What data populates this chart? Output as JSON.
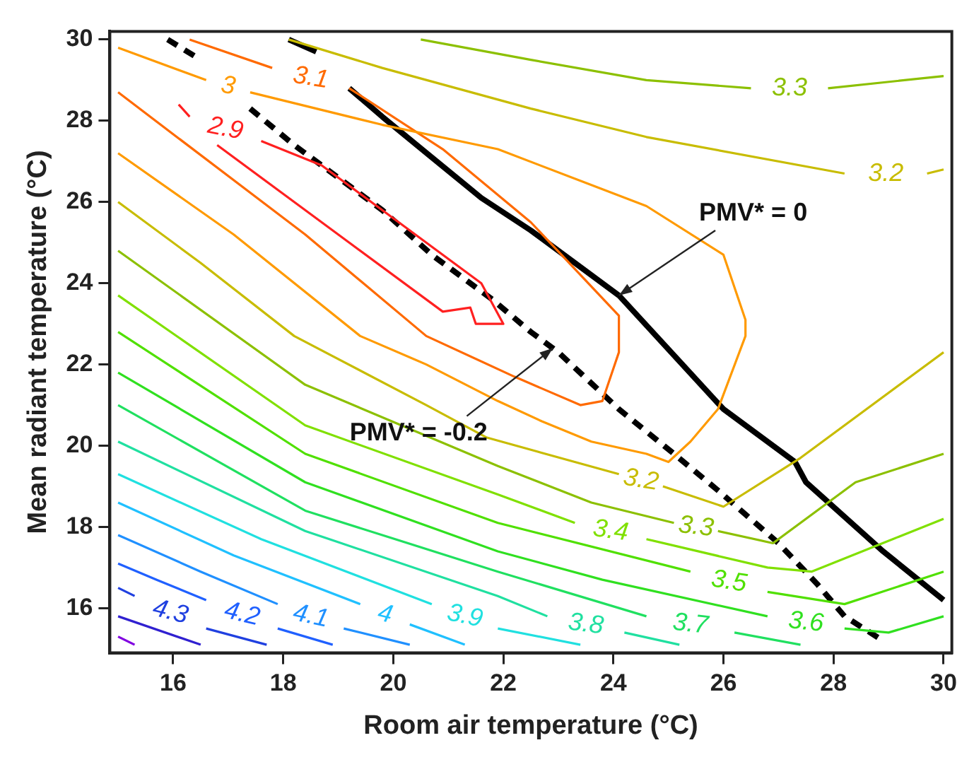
{
  "chart_data": {
    "type": "line",
    "xlabel": "Room air temperature (°C)",
    "ylabel": "Mean radiant temperature (°C)",
    "xlim": [
      14.85,
      30.15
    ],
    "ylim": [
      14.9,
      30.2
    ],
    "xticks": [
      16,
      18,
      20,
      22,
      24,
      26,
      28,
      30
    ],
    "yticks": [
      16,
      18,
      20,
      22,
      24,
      26,
      28,
      30
    ],
    "grid": false,
    "legend": false,
    "marker": "none",
    "annotations": [
      {
        "text": "PMV* = 0",
        "x": 24.1,
        "y": 23.7
      },
      {
        "text": "PMV* = -0.2",
        "x": 22.9,
        "y": 22.4
      }
    ],
    "series": [
      {
        "name": "2.9",
        "color": "#ff2020",
        "x": [
          16.8,
          17.9,
          19.2,
          20.9,
          21.4,
          21.5,
          22.0,
          21.6,
          20.9,
          19.8,
          18.7,
          17.6,
          17.0,
          16.3,
          16.1
        ],
        "values": [
          27.4,
          26.3,
          25.0,
          23.3,
          23.4,
          23.0,
          23.0,
          24.0,
          24.7,
          25.8,
          26.9,
          27.5,
          null,
          28.1,
          28.4
        ]
      },
      {
        "name": "3",
        "color": "#ff9a00",
        "x": [
          15.0,
          16.6,
          17.0,
          17.4,
          19.8,
          21.9,
          24.6,
          26.0,
          26.4,
          26.4,
          25.9,
          25.4,
          25.0,
          24.6,
          23.6,
          22.7,
          21.9,
          20.6,
          19.4,
          17.1,
          15.0
        ],
        "values": [
          29.8,
          29.0,
          null,
          28.7,
          27.9,
          27.3,
          25.9,
          24.7,
          23.1,
          22.7,
          20.9,
          20.1,
          19.6,
          19.8,
          20.1,
          20.6,
          21.1,
          22.0,
          22.7,
          25.2,
          27.2
        ]
      },
      {
        "name": "3.1",
        "color": "#ff6a00",
        "x": [
          16.3,
          17.8,
          18.5,
          19.2,
          20.9,
          22.5,
          24.1,
          24.1,
          23.8,
          23.4,
          22.2,
          20.6,
          18.4,
          15.0
        ],
        "values": [
          30.0,
          29.3,
          null,
          28.8,
          27.3,
          25.5,
          23.2,
          22.3,
          21.1,
          21.0,
          21.7,
          22.7,
          25.2,
          28.7
        ]
      },
      {
        "name": "3.2",
        "color": "#c8bc00",
        "x": [
          18.1,
          19.8,
          22.5,
          24.6,
          28.2,
          28.95,
          29.7,
          30.0
        ],
        "values": [
          30.0,
          29.3,
          28.3,
          27.6,
          26.7,
          null,
          26.7,
          26.8
        ]
      },
      {
        "name": "3.2",
        "color": "#c8bc00",
        "x": [
          15.0,
          16.5,
          18.2,
          20.6,
          21.7,
          22.5,
          24.1,
          24.5,
          24.9,
          26.0,
          27.4,
          30.0
        ],
        "values": [
          26.0,
          24.5,
          22.7,
          21.0,
          20.2,
          19.9,
          19.3,
          null,
          19.0,
          18.5,
          19.7,
          22.3
        ]
      },
      {
        "name": "3.3",
        "color": "#8cc000",
        "x": [
          20.5,
          22.5,
          24.6,
          26.5,
          27.2,
          27.9,
          30.0
        ],
        "values": [
          30.0,
          29.5,
          29.0,
          28.8,
          null,
          28.8,
          29.1
        ]
      },
      {
        "name": "3.3",
        "color": "#8cc000",
        "x": [
          15.0,
          18.4,
          21.9,
          23.6,
          25.1,
          25.5,
          25.9,
          26.9,
          28.4,
          30.0
        ],
        "values": [
          24.8,
          21.5,
          19.5,
          18.6,
          18.1,
          null,
          17.9,
          17.6,
          19.1,
          19.8
        ]
      },
      {
        "name": "3.4",
        "color": "#80e000",
        "x": [
          15.0,
          18.4,
          21.9,
          23.3,
          24.0,
          24.6,
          26.8,
          27.6,
          30.0
        ],
        "values": [
          23.7,
          20.5,
          18.8,
          18.1,
          null,
          17.7,
          17.0,
          16.9,
          18.2
        ]
      },
      {
        "name": "3.5",
        "color": "#50e000",
        "x": [
          15.0,
          18.4,
          21.9,
          25.4,
          26.1,
          26.8,
          28.2,
          30.0
        ],
        "values": [
          22.8,
          19.8,
          18.1,
          16.9,
          null,
          16.4,
          16.1,
          16.9
        ]
      },
      {
        "name": "3.6",
        "color": "#30e020",
        "x": [
          15.0,
          18.4,
          21.9,
          23.8,
          26.8,
          27.5,
          28.2,
          29.0,
          30.0
        ],
        "values": [
          21.8,
          19.1,
          17.4,
          16.7,
          15.8,
          null,
          15.5,
          15.4,
          15.8
        ]
      },
      {
        "name": "3.7",
        "color": "#20e060",
        "x": [
          15.0,
          18.4,
          21.9,
          24.6,
          25.4,
          26.2,
          27.4
        ],
        "values": [
          21.0,
          18.4,
          16.9,
          15.8,
          null,
          15.4,
          15.1
        ]
      },
      {
        "name": "3.8",
        "color": "#20e0a0",
        "x": [
          15.0,
          18.4,
          21.9,
          22.8,
          23.5,
          24.2,
          25.2
        ],
        "values": [
          20.1,
          17.9,
          16.3,
          15.8,
          null,
          15.4,
          15.1
        ]
      },
      {
        "name": "3.9",
        "color": "#20e0e0",
        "x": [
          15.0,
          17.6,
          20.7,
          21.3,
          21.9,
          23.4
        ],
        "values": [
          19.3,
          17.7,
          16.1,
          null,
          15.5,
          15.1
        ]
      },
      {
        "name": "4",
        "color": "#20c0ff",
        "x": [
          15.0,
          17.1,
          19.4,
          19.9,
          20.3,
          21.3
        ],
        "values": [
          18.6,
          17.3,
          16.1,
          null,
          15.6,
          15.1
        ]
      },
      {
        "name": "4.1",
        "color": "#2090ff",
        "x": [
          15.0,
          16.5,
          17.9,
          18.5,
          19.1,
          20.3
        ],
        "values": [
          17.8,
          16.9,
          16.1,
          null,
          15.5,
          15.1
        ]
      },
      {
        "name": "4.2",
        "color": "#2060ff",
        "x": [
          15.0,
          15.7,
          16.6,
          17.3,
          17.9,
          18.9
        ],
        "values": [
          17.1,
          16.7,
          16.2,
          null,
          15.5,
          15.1
        ]
      },
      {
        "name": "4.3",
        "color": "#2040e0",
        "x": [
          15.0,
          15.3,
          16.0,
          16.6,
          17.7
        ],
        "values": [
          16.5,
          16.3,
          null,
          15.5,
          15.1
        ]
      },
      {
        "color": "#3020d0",
        "x": [
          15.0,
          16.5
        ],
        "values": [
          15.8,
          15.1
        ]
      },
      {
        "color": "#8000e0",
        "x": [
          15.0,
          15.3
        ],
        "values": [
          15.3,
          15.1
        ]
      },
      {
        "color": "#000000",
        "x": [
          18.1,
          18.6,
          18.9,
          19.2,
          19.8,
          20.7,
          21.6,
          22.5,
          24.1,
          26.0,
          27.3,
          27.5,
          28.9,
          30.0
        ],
        "values": [
          30.0,
          29.7,
          null,
          28.8,
          28.1,
          27.1,
          26.1,
          25.3,
          23.7,
          20.9,
          19.6,
          19.1,
          17.4,
          16.2
        ]
      },
      {
        "color": "#000000",
        "line_style": "dashed",
        "x": [
          15.9,
          16.5,
          16.9,
          17.4,
          18.2,
          19.1,
          19.8,
          20.7,
          21.8,
          22.5,
          23.0,
          24.1,
          25.1,
          25.9,
          27.0,
          27.7,
          28.2,
          28.9
        ],
        "values": [
          30.0,
          29.5,
          null,
          28.3,
          27.4,
          26.5,
          25.8,
          24.7,
          23.6,
          22.8,
          22.3,
          20.9,
          19.8,
          18.9,
          17.6,
          16.6,
          15.8,
          15.2
        ]
      }
    ]
  }
}
